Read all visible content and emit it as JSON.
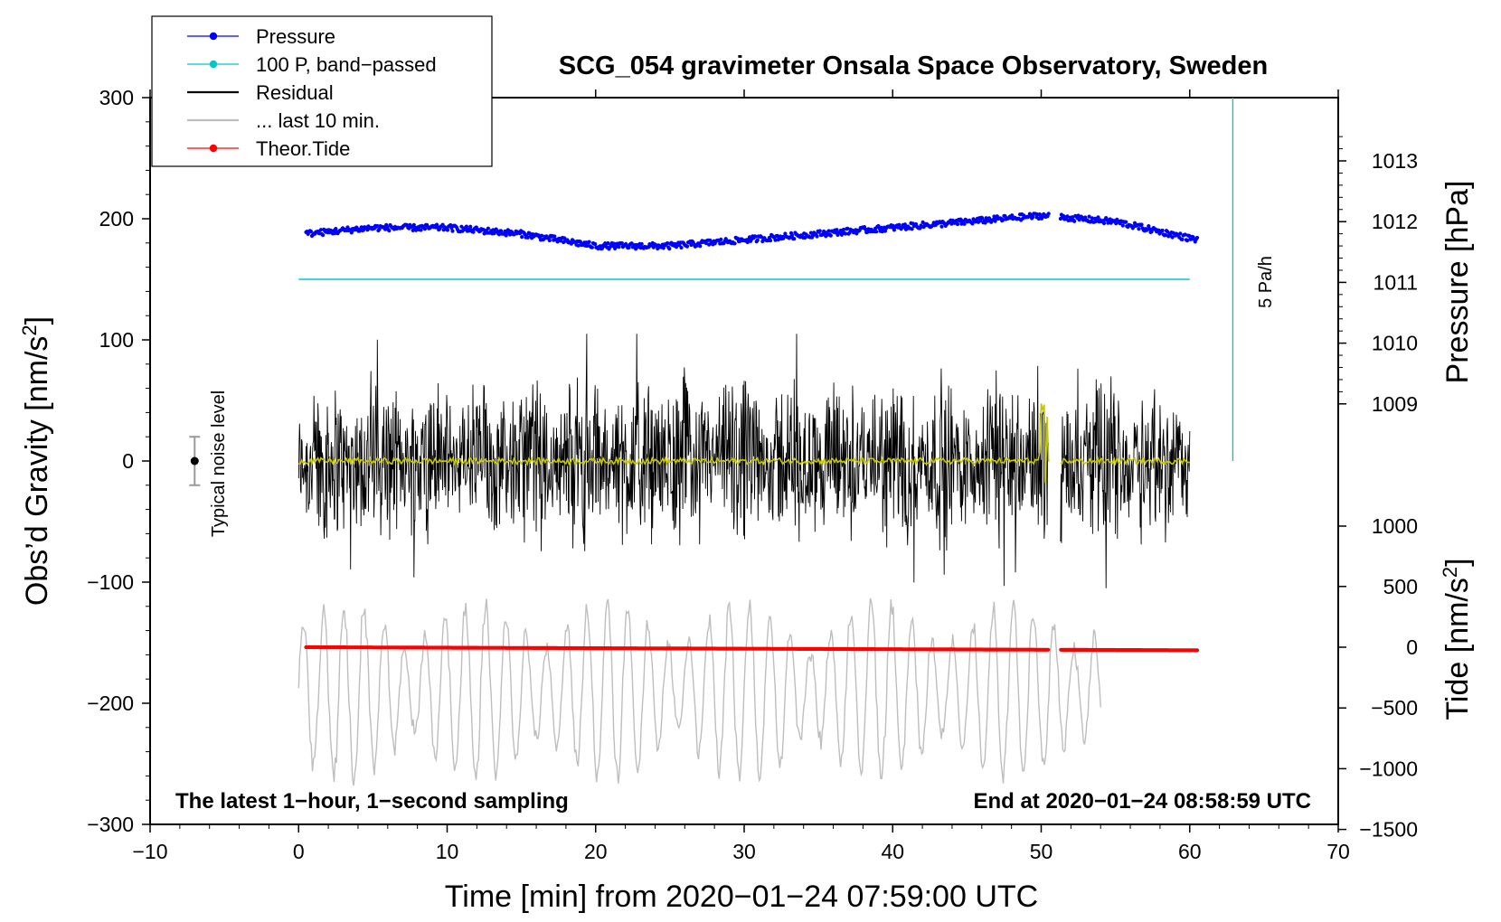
{
  "chart_data": {
    "type": "line",
    "title": "SCG_054 gravimeter Onsala Space Observatory, Sweden",
    "xlabel": "Time [min] from 2020−01−24 07:59:00 UTC",
    "ylabel_left": "Obs’d Gravity [nm/s",
    "ylabel_right_top": "Pressure [hPa]",
    "ylabel_right_bottom": "Tide [nm/s",
    "unit_superscript": "2",
    "unit_close": "]",
    "xlim": [
      -10,
      70
    ],
    "ylim": [
      -300,
      300
    ],
    "x_ticks": [
      {
        "v": -10,
        "label": "−10"
      },
      {
        "v": 0,
        "label": "0"
      },
      {
        "v": 10,
        "label": "10"
      },
      {
        "v": 20,
        "label": "20"
      },
      {
        "v": 30,
        "label": "30"
      },
      {
        "v": 40,
        "label": "40"
      },
      {
        "v": 50,
        "label": "50"
      },
      {
        "v": 60,
        "label": "60"
      },
      {
        "v": 70,
        "label": "70"
      }
    ],
    "y_ticks_left": [
      {
        "v": 300,
        "label": "300"
      },
      {
        "v": 200,
        "label": "200"
      },
      {
        "v": 100,
        "label": "100"
      },
      {
        "v": 0,
        "label": "0"
      },
      {
        "v": -100,
        "label": "−100"
      },
      {
        "v": -200,
        "label": "−200"
      },
      {
        "v": -300,
        "label": "−300"
      }
    ],
    "pressure_axis": {
      "ticks": [
        {
          "v": 1013,
          "label": "1013"
        },
        {
          "v": 1012,
          "label": "1012"
        },
        {
          "v": 1011,
          "label": "1011"
        },
        {
          "v": 1010,
          "label": "1010"
        },
        {
          "v": 1009,
          "label": "1009"
        },
        {
          "v": 1000,
          "label": "1000"
        }
      ]
    },
    "tide_axis": {
      "ticks": [
        {
          "v": 500,
          "label": "500"
        },
        {
          "v": 0,
          "label": "0"
        },
        {
          "v": -500,
          "label": "−500"
        },
        {
          "v": -1000,
          "label": "−1000"
        },
        {
          "v": -1500,
          "label": "−1500"
        }
      ]
    },
    "legend": [
      {
        "label": "Pressure",
        "color": "#0000ff",
        "marker": true
      },
      {
        "label": "100 P, band−passed",
        "color": "#00c8c8",
        "marker": true
      },
      {
        "label": "Residual",
        "color": "#000000",
        "marker": false
      },
      {
        "label": "... last 10 min.",
        "color": "#bebebe",
        "marker": false
      },
      {
        "label": "Theor.Tide",
        "color": "#ff0000",
        "marker": true
      }
    ],
    "series": [
      {
        "name": "Pressure",
        "color": "#0000ff",
        "unit": "hPa",
        "x_range": [
          0.5,
          60.5
        ],
        "approx_values": [
          [
            0.5,
            1011.8
          ],
          [
            5,
            1011.9
          ],
          [
            10,
            1011.9
          ],
          [
            15,
            1011.8
          ],
          [
            20,
            1011.6
          ],
          [
            25,
            1011.6
          ],
          [
            30,
            1011.7
          ],
          [
            35,
            1011.8
          ],
          [
            40,
            1011.9
          ],
          [
            45,
            1012.0
          ],
          [
            50,
            1012.1
          ],
          [
            55,
            1012.0
          ],
          [
            60.5,
            1011.7
          ]
        ],
        "gap": [
          50.5,
          51.3
        ]
      },
      {
        "name": "100 P, band-passed",
        "color": "#00c8c8",
        "unit": "nm/s2",
        "x_range": [
          0,
          60
        ],
        "constant_value": 150
      },
      {
        "name": "Residual",
        "color": "#000000",
        "unit": "nm/s2",
        "x_range": [
          0,
          60
        ],
        "approx_envelope": 60,
        "gap": [
          50.5,
          51.3
        ]
      },
      {
        "name": "Filtered residual",
        "color": "#c8c800",
        "unit": "nm/s2",
        "x_range": [
          0,
          60
        ],
        "approx_value": 0
      },
      {
        "name": "... last 10 min.",
        "color": "#bebebe",
        "unit": "nm/s2",
        "x_range": [
          0,
          54
        ],
        "approx_center": -190,
        "approx_amplitude": 60
      },
      {
        "name": "Theor.Tide",
        "color": "#ff0000",
        "unit": "nm/s2",
        "x_range": [
          0.5,
          60.5
        ],
        "approx_values": [
          [
            0.5,
            0
          ],
          [
            60.5,
            -25
          ]
        ],
        "gap": [
          50.5,
          51.3
        ]
      }
    ],
    "annotations": {
      "pa_rate": "5 Pa/h",
      "noise_label": "Typical noise level",
      "noise_level_range": [
        -20,
        20
      ],
      "noise_x": -7,
      "bottom_left": "The latest 1−hour, 1−second sampling",
      "bottom_right": "End at 2020−01−24 08:58:59 UTC"
    }
  }
}
